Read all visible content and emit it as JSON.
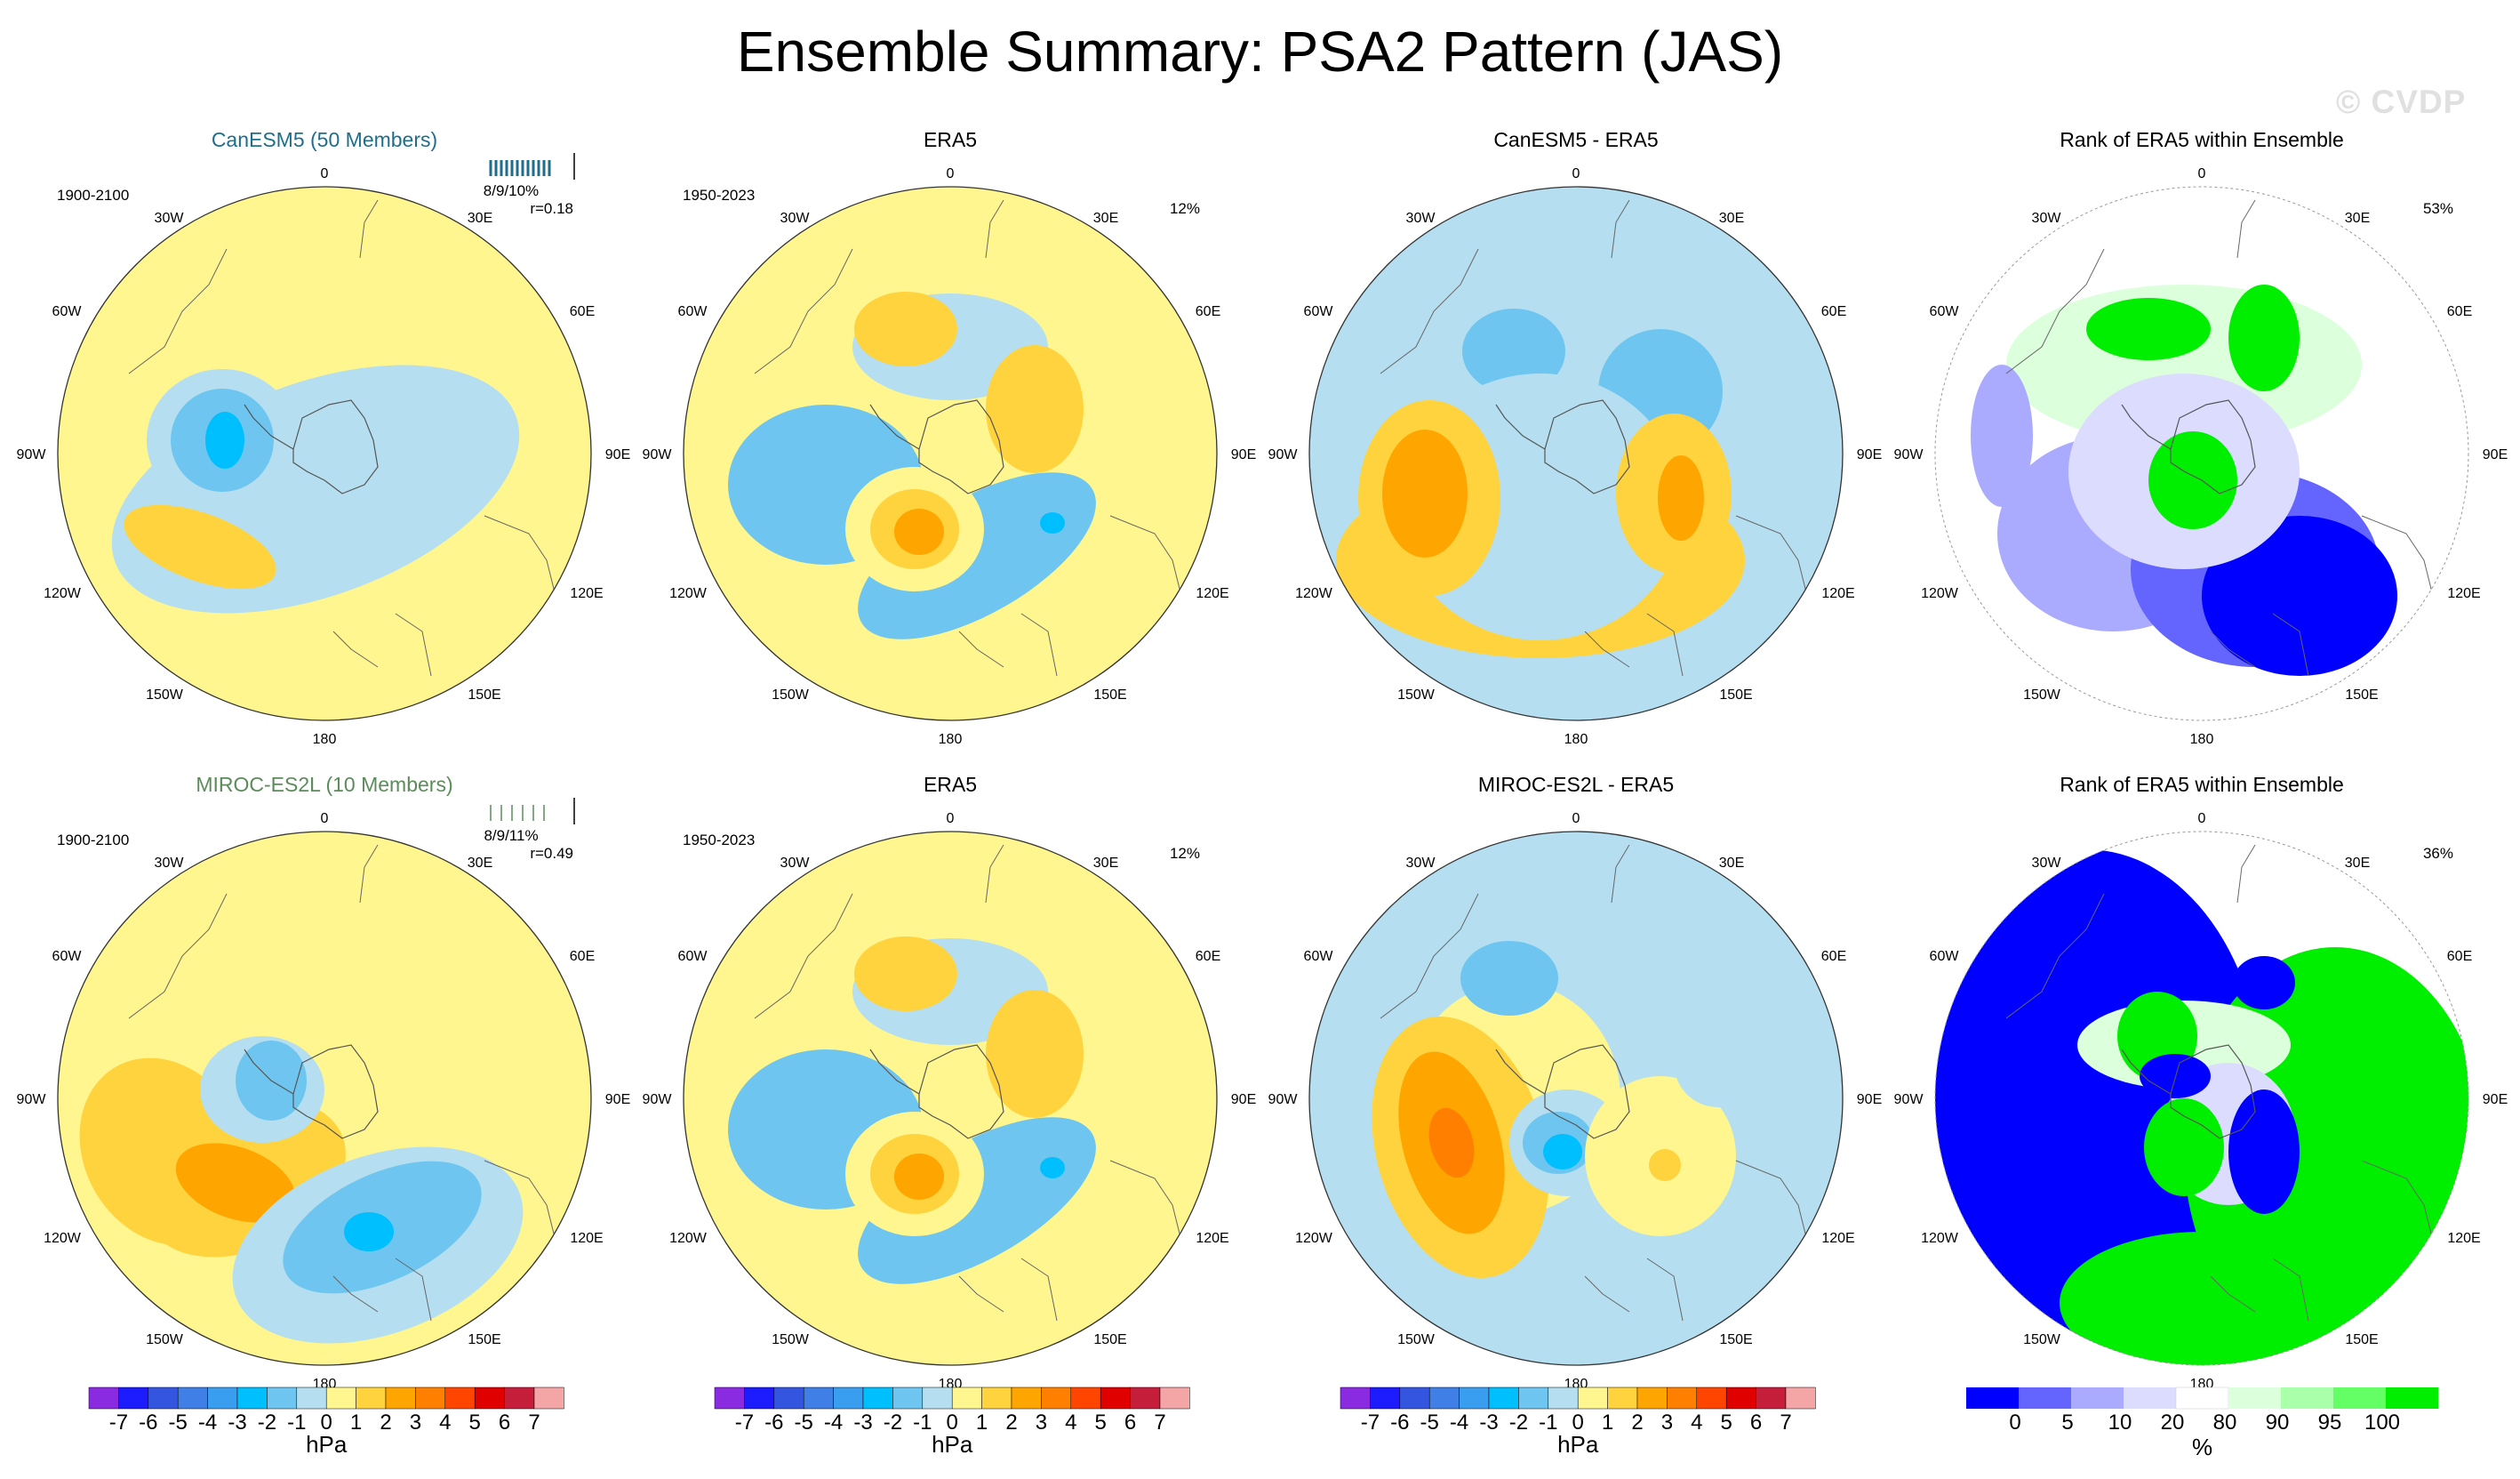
{
  "title": "Ensemble Summary: PSA2 Pattern (JAS)",
  "watermark": "© CVDP",
  "rows": [
    {
      "model_title": "CanESM5 (50 Members)",
      "model_color": "#1f6e8c",
      "model_period": "1900-2100",
      "model_stats": "8/9/10%",
      "model_r": "r=0.18",
      "obs_title": "ERA5",
      "obs_period": "1950-2023",
      "obs_pct": "12%",
      "diff_title": "CanESM5 - ERA5",
      "rank_title": "Rank of ERA5 within Ensemble",
      "rank_pct": "53%"
    },
    {
      "model_title": "MIROC-ES2L (10 Members)",
      "model_color": "#5b8c5a",
      "model_period": "1900-2100",
      "model_stats": "8/9/11%",
      "model_r": "r=0.49",
      "obs_title": "ERA5",
      "obs_period": "1950-2023",
      "obs_pct": "12%",
      "diff_title": "MIROC-ES2L - ERA5",
      "rank_title": "Rank of ERA5 within Ensemble",
      "rank_pct": "36%"
    }
  ],
  "lon_labels": {
    "top": "0",
    "left_upper": "30W",
    "right_upper": "30E",
    "left_mid_up": "60W",
    "right_mid_up": "60E",
    "left": "90W",
    "right": "90E",
    "left_mid_low": "120W",
    "right_mid_low": "120E",
    "left_low": "150W",
    "right_low": "150E",
    "bottom": "180"
  },
  "colorbar_hpa": {
    "labels": [
      "-7",
      "-6",
      "-5",
      "-4",
      "-3",
      "-2",
      "-1",
      "0",
      "1",
      "2",
      "3",
      "4",
      "5",
      "6",
      "7"
    ],
    "colors": [
      "#8a2be2",
      "#1c1cff",
      "#3355e0",
      "#3f7fe6",
      "#3a9ef0",
      "#00bfff",
      "#6ec6f0",
      "#b5dff0",
      "#fff68f",
      "#ffd33d",
      "#ffa500",
      "#ff7f00",
      "#ff4500",
      "#e00000",
      "#c41e3a",
      "#f4a6a6"
    ],
    "unit": "hPa"
  },
  "colorbar_rank": {
    "labels": [
      "0",
      "5",
      "10",
      "20",
      "80",
      "90",
      "95",
      "100"
    ],
    "colors": [
      "#0000ff",
      "#6464ff",
      "#aaaaff",
      "#dcdcff",
      "#ffffff",
      "#dcffdc",
      "#aaffaa",
      "#64ff64",
      "#00ee00"
    ],
    "unit": "%"
  },
  "palette": {
    "neg3": "#00bfff",
    "neg2": "#6ec6f0",
    "neg1": "#b5dff0",
    "pos1": "#fff68f",
    "pos2": "#ffd33d",
    "pos3": "#ffa500",
    "pos4": "#ff7f00",
    "rank_blue": "#0000ff",
    "rank_mblue": "#6464ff",
    "rank_lblue": "#aaaaff",
    "rank_vlblue": "#dcdcff",
    "rank_vlgreen": "#dcffdc",
    "rank_lgreen": "#aaffaa",
    "rank_green": "#00ee00"
  }
}
